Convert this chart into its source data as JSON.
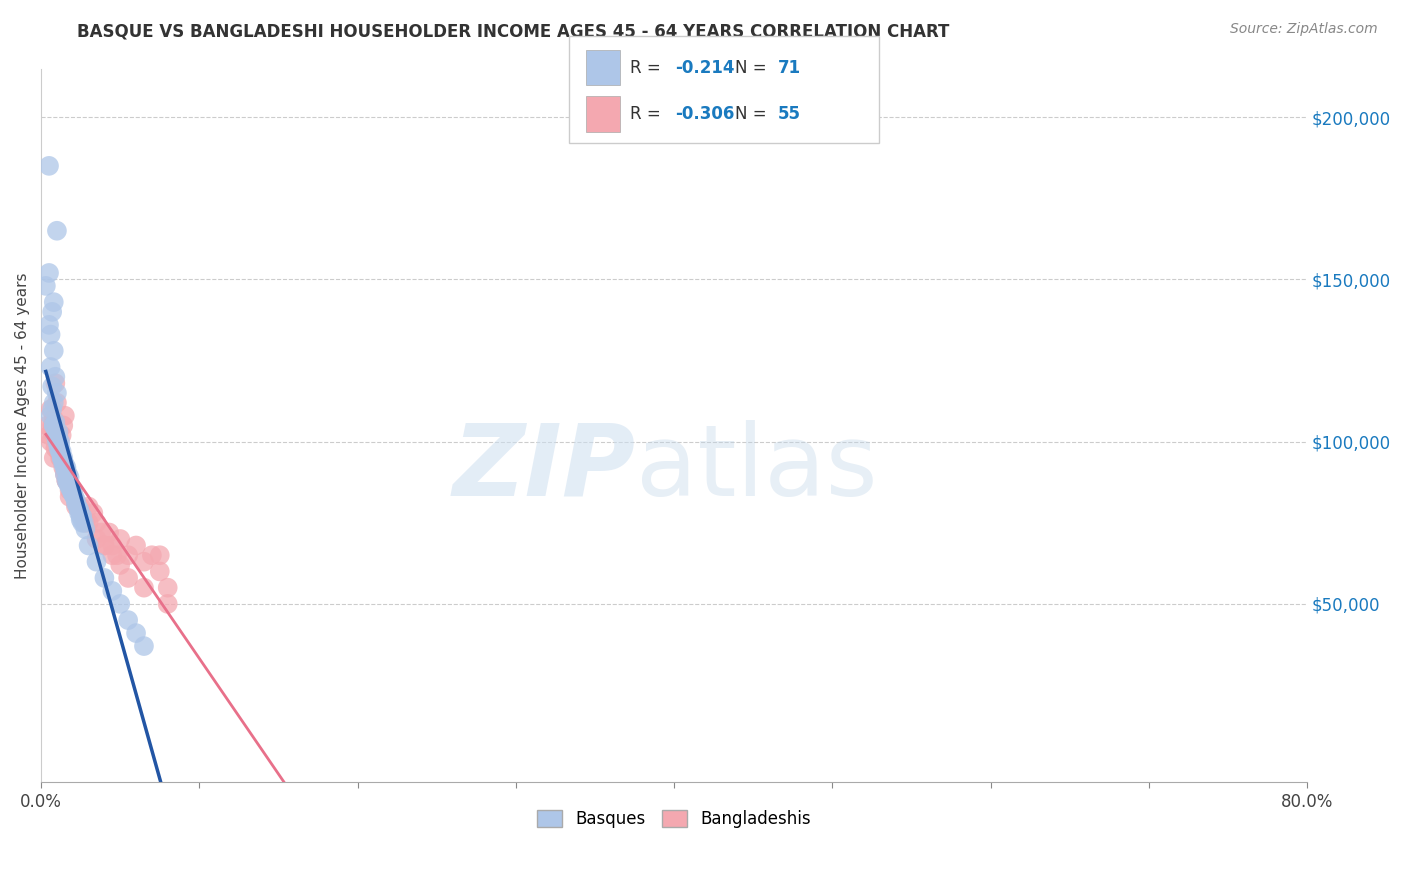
{
  "title": "BASQUE VS BANGLADESHI HOUSEHOLDER INCOME AGES 45 - 64 YEARS CORRELATION CHART",
  "source": "Source: ZipAtlas.com",
  "ylabel": "Householder Income Ages 45 - 64 years",
  "y_ticks": [
    0,
    50000,
    100000,
    150000,
    200000
  ],
  "y_tick_labels": [
    "",
    "$50,000",
    "$100,000",
    "$150,000",
    "$200,000"
  ],
  "xlim": [
    0.0,
    0.8
  ],
  "ylim": [
    -5000,
    215000
  ],
  "blue_color": "#aec6e8",
  "pink_color": "#f4a8b0",
  "blue_line_color": "#2255a4",
  "pink_line_color": "#e8708a",
  "dashed_line_color": "#aec6e8",
  "basque_x": [
    0.005,
    0.01,
    0.005,
    0.008,
    0.003,
    0.007,
    0.005,
    0.006,
    0.008,
    0.006,
    0.009,
    0.007,
    0.01,
    0.008,
    0.006,
    0.007,
    0.009,
    0.011,
    0.012,
    0.008,
    0.01,
    0.012,
    0.008,
    0.009,
    0.011,
    0.013,
    0.01,
    0.012,
    0.014,
    0.011,
    0.013,
    0.015,
    0.012,
    0.014,
    0.016,
    0.013,
    0.015,
    0.017,
    0.014,
    0.016,
    0.018,
    0.015,
    0.017,
    0.019,
    0.016,
    0.018,
    0.02,
    0.017,
    0.019,
    0.021,
    0.022,
    0.024,
    0.02,
    0.022,
    0.024,
    0.026,
    0.023,
    0.025,
    0.027,
    0.024,
    0.026,
    0.028,
    0.025,
    0.03,
    0.035,
    0.04,
    0.045,
    0.05,
    0.055,
    0.06,
    0.065
  ],
  "basque_y": [
    185000,
    165000,
    152000,
    143000,
    148000,
    140000,
    136000,
    133000,
    128000,
    123000,
    120000,
    117000,
    115000,
    112000,
    108000,
    110000,
    106000,
    103000,
    100000,
    105000,
    102000,
    99000,
    105000,
    102000,
    100000,
    97000,
    100000,
    97000,
    95000,
    98000,
    95000,
    92000,
    97000,
    94000,
    92000,
    95000,
    93000,
    90000,
    93000,
    91000,
    89000,
    90000,
    88000,
    86000,
    88000,
    86000,
    84000,
    87000,
    85000,
    83000,
    82000,
    79000,
    84000,
    81000,
    79000,
    77000,
    80000,
    77000,
    75000,
    78000,
    75000,
    73000,
    76000,
    68000,
    63000,
    58000,
    54000,
    50000,
    45000,
    41000,
    37000
  ],
  "bangladeshi_x": [
    0.004,
    0.006,
    0.008,
    0.005,
    0.007,
    0.009,
    0.006,
    0.008,
    0.01,
    0.007,
    0.009,
    0.011,
    0.01,
    0.012,
    0.014,
    0.011,
    0.013,
    0.015,
    0.013,
    0.015,
    0.017,
    0.014,
    0.016,
    0.018,
    0.016,
    0.018,
    0.02,
    0.022,
    0.025,
    0.028,
    0.03,
    0.033,
    0.035,
    0.038,
    0.04,
    0.043,
    0.045,
    0.048,
    0.05,
    0.055,
    0.06,
    0.065,
    0.07,
    0.075,
    0.08,
    0.025,
    0.03,
    0.035,
    0.04,
    0.045,
    0.05,
    0.055,
    0.065,
    0.075,
    0.08
  ],
  "bangladeshi_y": [
    105000,
    100000,
    95000,
    102000,
    105000,
    118000,
    110000,
    107000,
    112000,
    103000,
    98000,
    102000,
    100000,
    95000,
    105000,
    97000,
    102000,
    108000,
    95000,
    90000,
    88000,
    92000,
    88000,
    85000,
    88000,
    83000,
    85000,
    80000,
    78000,
    75000,
    80000,
    78000,
    75000,
    72000,
    68000,
    72000,
    68000,
    65000,
    70000,
    65000,
    68000,
    63000,
    65000,
    60000,
    55000,
    80000,
    75000,
    70000,
    68000,
    65000,
    62000,
    58000,
    55000,
    65000,
    50000
  ]
}
